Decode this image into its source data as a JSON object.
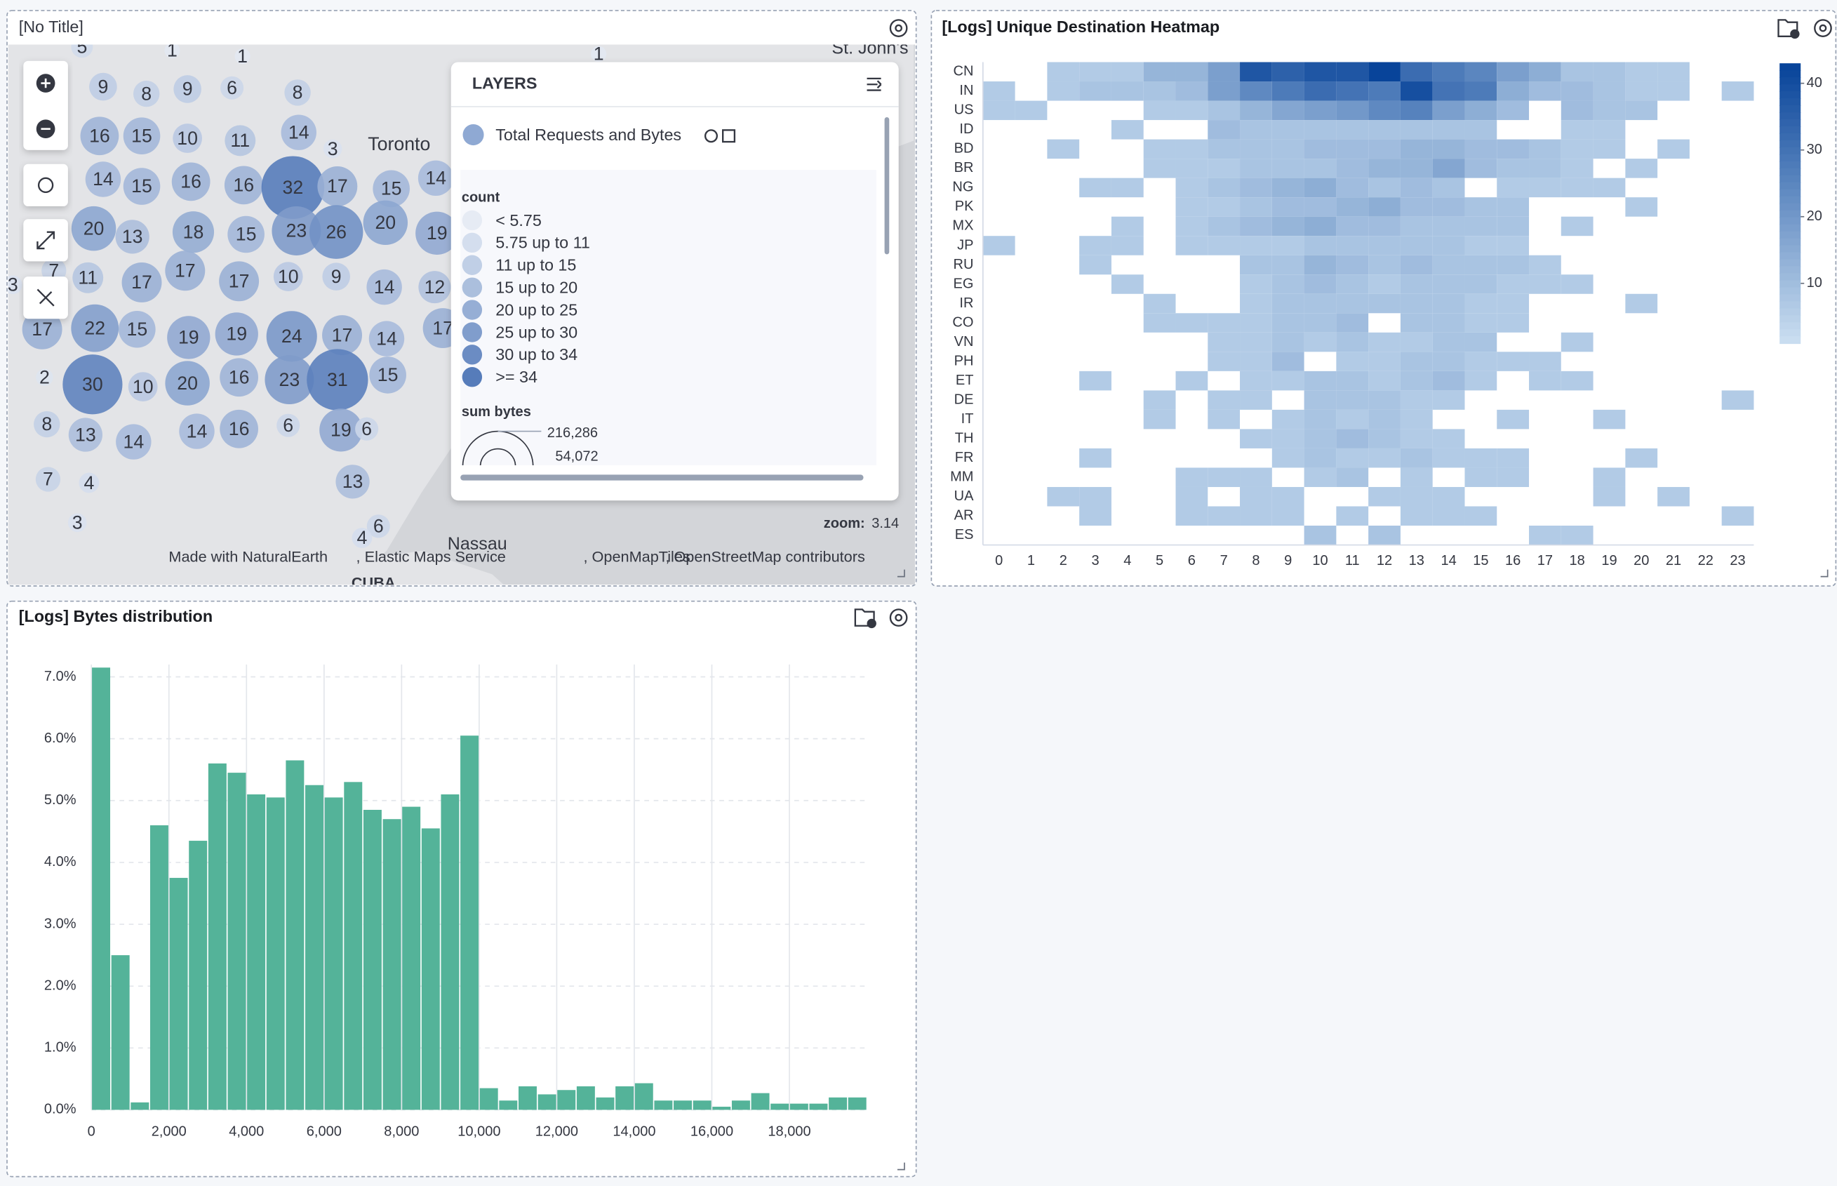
{
  "map_panel": {
    "title": "[No Title]",
    "clusters": [
      5,
      1,
      1,
      1,
      9,
      8,
      9,
      6,
      8,
      16,
      15,
      10,
      11,
      14,
      3,
      14,
      15,
      16,
      16,
      32,
      17,
      15,
      14,
      20,
      13,
      18,
      15,
      23,
      26,
      20,
      19,
      3,
      7,
      11,
      17,
      17,
      17,
      10,
      9,
      14,
      12,
      17,
      22,
      15,
      19,
      19,
      24,
      17,
      14,
      17,
      2,
      30,
      10,
      20,
      16,
      23,
      31,
      15,
      8,
      13,
      14,
      14,
      16,
      6,
      19,
      6,
      7,
      4,
      13,
      6,
      4,
      3
    ],
    "place_labels": [
      "Toronto",
      "St. John's",
      "Nassau",
      "CUBA"
    ],
    "layers": {
      "title": "LAYERS",
      "layer_name": "Total Requests and Bytes",
      "count_title": "count",
      "count_classes": [
        "< 5.75",
        "5.75 up to 11",
        "11 up to 15",
        "15 up to 20",
        "20 up to 25",
        "25 up to 30",
        "30 up to 34",
        ">= 34"
      ],
      "count_colors": [
        "#e6ebf4",
        "#d4deee",
        "#c0cfe6",
        "#abbfdd",
        "#96aed5",
        "#809dcc",
        "#6b8cc3",
        "#567cba"
      ],
      "size_title": "sum bytes",
      "size_labels": [
        "216,286",
        "54,072"
      ]
    },
    "zoom_label": "zoom:",
    "zoom": 3.14,
    "attribution": [
      "Made with NaturalEarth",
      ", Elastic Maps Service",
      ", OpenMapTiles",
      ", OpenStreetMap contributors"
    ]
  },
  "chart_data": [
    {
      "type": "heatmap",
      "title": "[Logs] Unique Destination Heatmap",
      "categories": [
        "0",
        "1",
        "2",
        "3",
        "4",
        "5",
        "6",
        "7",
        "8",
        "9",
        "10",
        "11",
        "12",
        "13",
        "14",
        "15",
        "16",
        "17",
        "18",
        "19",
        "20",
        "21",
        "22",
        "23"
      ],
      "rows": [
        "CN",
        "IN",
        "US",
        "ID",
        "BD",
        "BR",
        "NG",
        "PK",
        "MX",
        "JP",
        "RU",
        "EG",
        "IR",
        "CO",
        "VN",
        "PH",
        "ET",
        "DE",
        "IT",
        "TH",
        "FR",
        "MM",
        "UA",
        "AR",
        "ES"
      ],
      "values": [
        [
          null,
          null,
          6,
          6,
          6,
          12,
          12,
          18,
          38,
          35,
          38,
          38,
          43,
          32,
          28,
          25,
          18,
          14,
          8,
          8,
          6,
          6,
          null,
          null
        ],
        [
          6,
          null,
          6,
          8,
          8,
          8,
          10,
          18,
          24,
          28,
          32,
          30,
          28,
          40,
          30,
          28,
          14,
          10,
          10,
          8,
          6,
          6,
          null,
          6
        ],
        [
          6,
          6,
          null,
          null,
          null,
          6,
          6,
          8,
          12,
          16,
          18,
          20,
          24,
          26,
          18,
          14,
          10,
          null,
          10,
          8,
          8,
          null,
          null,
          null
        ],
        [
          null,
          null,
          null,
          null,
          6,
          null,
          null,
          10,
          8,
          8,
          8,
          8,
          8,
          8,
          8,
          8,
          null,
          null,
          6,
          6,
          null,
          null,
          null,
          null
        ],
        [
          null,
          null,
          6,
          null,
          null,
          6,
          6,
          8,
          8,
          8,
          10,
          10,
          10,
          12,
          12,
          10,
          10,
          8,
          6,
          6,
          null,
          6,
          null,
          null
        ],
        [
          null,
          null,
          null,
          null,
          null,
          6,
          6,
          6,
          8,
          8,
          8,
          10,
          12,
          12,
          16,
          10,
          8,
          8,
          6,
          null,
          6,
          null,
          null,
          null
        ],
        [
          null,
          null,
          null,
          6,
          6,
          null,
          6,
          8,
          10,
          12,
          14,
          10,
          8,
          10,
          8,
          null,
          6,
          6,
          6,
          6,
          null,
          null,
          null,
          null
        ],
        [
          null,
          null,
          null,
          null,
          null,
          null,
          6,
          6,
          8,
          10,
          10,
          12,
          14,
          10,
          10,
          8,
          8,
          null,
          null,
          null,
          6,
          null,
          null,
          null
        ],
        [
          null,
          null,
          null,
          null,
          6,
          null,
          6,
          8,
          10,
          12,
          14,
          10,
          10,
          8,
          8,
          8,
          8,
          null,
          6,
          null,
          null,
          null,
          null,
          null
        ],
        [
          6,
          null,
          null,
          6,
          6,
          null,
          6,
          6,
          6,
          6,
          8,
          8,
          8,
          8,
          8,
          6,
          6,
          null,
          null,
          null,
          null,
          null,
          null,
          null
        ],
        [
          null,
          null,
          null,
          6,
          null,
          null,
          null,
          null,
          8,
          8,
          12,
          10,
          8,
          10,
          8,
          8,
          8,
          6,
          null,
          null,
          null,
          null,
          null,
          null
        ],
        [
          null,
          null,
          null,
          null,
          6,
          null,
          null,
          null,
          6,
          8,
          10,
          8,
          6,
          8,
          8,
          8,
          6,
          6,
          6,
          null,
          null,
          null,
          null,
          null
        ],
        [
          null,
          null,
          null,
          null,
          null,
          6,
          null,
          null,
          6,
          8,
          8,
          8,
          8,
          8,
          8,
          6,
          6,
          null,
          null,
          null,
          6,
          null,
          null,
          null
        ],
        [
          null,
          null,
          null,
          null,
          null,
          6,
          6,
          6,
          6,
          8,
          8,
          10,
          null,
          8,
          8,
          6,
          6,
          null,
          null,
          null,
          null,
          null,
          null,
          null
        ],
        [
          null,
          null,
          null,
          null,
          null,
          null,
          null,
          6,
          6,
          8,
          6,
          8,
          6,
          6,
          8,
          8,
          null,
          null,
          6,
          null,
          null,
          null,
          null,
          null
        ],
        [
          null,
          null,
          null,
          null,
          null,
          null,
          null,
          6,
          6,
          10,
          null,
          6,
          6,
          8,
          8,
          6,
          6,
          6,
          null,
          null,
          null,
          null,
          null,
          null
        ],
        [
          null,
          null,
          null,
          6,
          null,
          null,
          6,
          null,
          6,
          6,
          8,
          8,
          6,
          8,
          10,
          6,
          null,
          6,
          6,
          null,
          null,
          null,
          null,
          null
        ],
        [
          null,
          null,
          null,
          null,
          null,
          6,
          null,
          6,
          6,
          null,
          8,
          8,
          8,
          6,
          6,
          null,
          null,
          null,
          null,
          null,
          null,
          null,
          null,
          6
        ],
        [
          null,
          null,
          null,
          null,
          null,
          6,
          null,
          6,
          null,
          6,
          8,
          6,
          8,
          6,
          null,
          null,
          6,
          null,
          null,
          6,
          null,
          null,
          null,
          null
        ],
        [
          null,
          null,
          null,
          null,
          null,
          null,
          null,
          null,
          6,
          6,
          8,
          10,
          8,
          6,
          6,
          null,
          null,
          null,
          null,
          null,
          null,
          null,
          null,
          null
        ],
        [
          null,
          null,
          null,
          6,
          null,
          null,
          null,
          null,
          null,
          6,
          8,
          6,
          6,
          8,
          6,
          6,
          6,
          null,
          null,
          null,
          6,
          null,
          null,
          null
        ],
        [
          null,
          null,
          null,
          null,
          null,
          null,
          6,
          6,
          6,
          null,
          6,
          8,
          null,
          6,
          null,
          6,
          6,
          null,
          null,
          6,
          null,
          null,
          null,
          null
        ],
        [
          null,
          null,
          6,
          6,
          null,
          null,
          6,
          null,
          6,
          6,
          null,
          null,
          6,
          6,
          6,
          null,
          null,
          null,
          null,
          6,
          null,
          6,
          null,
          null
        ],
        [
          null,
          null,
          null,
          6,
          null,
          null,
          6,
          6,
          6,
          6,
          null,
          6,
          null,
          6,
          6,
          6,
          null,
          null,
          null,
          null,
          null,
          null,
          null,
          6
        ],
        [
          null,
          null,
          null,
          null,
          null,
          null,
          null,
          null,
          null,
          null,
          8,
          null,
          8,
          null,
          null,
          null,
          null,
          6,
          6,
          null,
          null,
          null,
          null,
          null
        ]
      ],
      "clim": [
        1,
        43
      ],
      "cticks": [
        10,
        20,
        30,
        40
      ],
      "colors": [
        "#c9ddf0",
        "#08449a"
      ]
    },
    {
      "type": "histogram",
      "title": "[Logs] Bytes distribution",
      "color": "#54b399",
      "bins": [
        0,
        500,
        1000,
        1500,
        2000,
        2500,
        3000,
        3500,
        4000,
        4500,
        5000,
        5500,
        6000,
        6500,
        7000,
        7500,
        8000,
        8500,
        9000,
        9500,
        10000,
        10500,
        11000,
        11500,
        12000,
        12500,
        13000,
        13500,
        14000,
        14500,
        15000,
        15500,
        16000,
        16500,
        17000,
        17500,
        18000,
        18500,
        19000,
        19500,
        20000
      ],
      "values": [
        7.15,
        2.5,
        0.12,
        4.6,
        3.75,
        4.35,
        5.6,
        5.45,
        5.1,
        5.05,
        5.65,
        5.25,
        5.05,
        5.3,
        4.85,
        4.7,
        4.9,
        4.55,
        5.1,
        6.05,
        0.35,
        0.15,
        0.38,
        0.25,
        0.32,
        0.38,
        0.2,
        0.38,
        0.43,
        0.15,
        0.15,
        0.15,
        0.05,
        0.15,
        0.27,
        0.1,
        0.1,
        0.1,
        0.2,
        0.2
      ],
      "xlim": [
        0,
        20000
      ],
      "ylim": [
        0,
        7.2
      ],
      "xticks": [
        0,
        {
          "value": 2000,
          "label": "2,000"
        },
        {
          "value": 4000,
          "label": "4,000"
        },
        {
          "value": 6000,
          "label": "6,000"
        },
        {
          "value": 8000,
          "label": "8,000"
        },
        {
          "value": 10000,
          "label": "10,000"
        },
        {
          "value": 12000,
          "label": "12,000"
        },
        {
          "value": 14000,
          "label": "14,000"
        },
        {
          "value": 16000,
          "label": "16,000"
        },
        {
          "value": 18000,
          "label": "18,000"
        }
      ],
      "yticks": [
        {
          "value": 0,
          "label": "0.0%"
        },
        {
          "value": 1,
          "label": "1.0%"
        },
        {
          "value": 2,
          "label": "2.0%"
        },
        {
          "value": 3,
          "label": "3.0%"
        },
        {
          "value": 4,
          "label": "4.0%"
        },
        {
          "value": 5,
          "label": "5.0%"
        },
        {
          "value": 6,
          "label": "6.0%"
        },
        {
          "value": 7,
          "label": "7.0%"
        }
      ],
      "grid": true
    }
  ]
}
